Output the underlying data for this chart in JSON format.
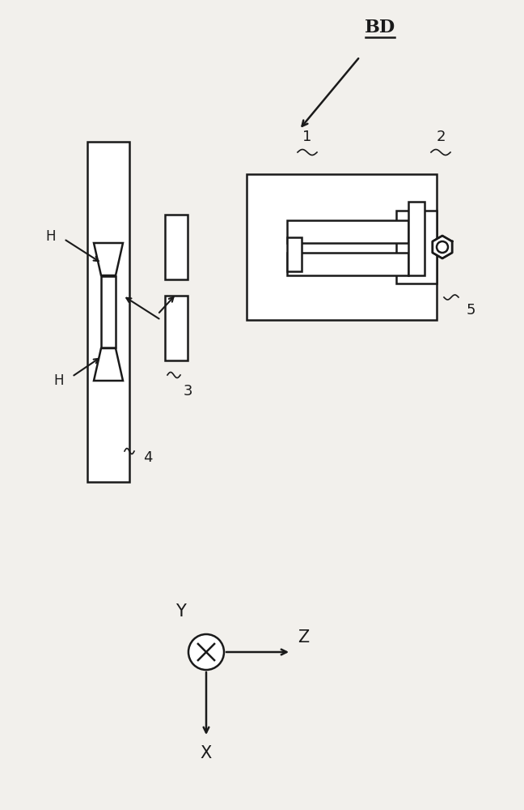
{
  "bg_color": "#f2f0ec",
  "line_color": "#1a1a1a",
  "fig_width": 6.48,
  "fig_height": 10.0,
  "bd_label": "BD",
  "label_1": "1",
  "label_2": "2",
  "label_3": "3",
  "label_4": "4",
  "label_5": "5",
  "label_H1": "H",
  "label_H2": "H",
  "label_X": "X",
  "label_Y": "Y",
  "label_Z": "Z"
}
